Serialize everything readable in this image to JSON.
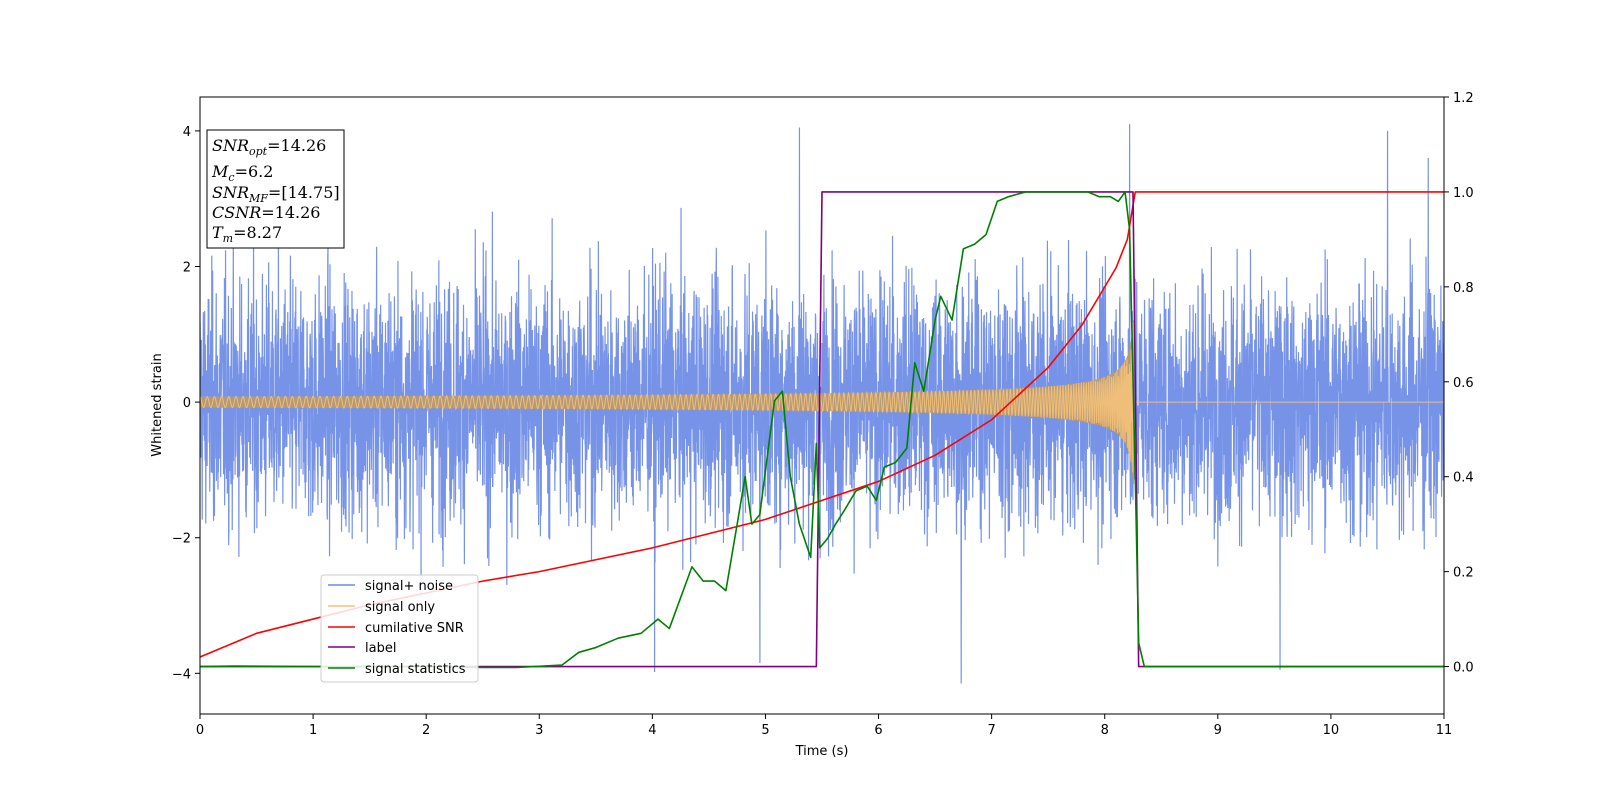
{
  "chart_data": {
    "type": "line",
    "xlabel": "Time (s)",
    "ylabel": "Whitened strain",
    "xlim": [
      0,
      11
    ],
    "ylim": [
      -4.6,
      4.5
    ],
    "y2lim": [
      -0.1,
      1.2
    ],
    "xticks": [
      "0",
      "1",
      "2",
      "3",
      "4",
      "5",
      "6",
      "7",
      "8",
      "9",
      "10",
      "11"
    ],
    "yticks": [
      "−4",
      "−2",
      "0",
      "2",
      "4"
    ],
    "y2ticks": [
      "0.0",
      "0.2",
      "0.4",
      "0.6",
      "0.8",
      "1.0",
      "1.2"
    ],
    "grid": false,
    "legend_position": "lower-left",
    "colors": {
      "signal_noise": "#6a8ae6",
      "signal_only": "#f5c27a",
      "cumulative_snr": "#ff0000",
      "label": "#800080",
      "statistics": "#008000"
    },
    "series": [
      {
        "name": "signal+ noise",
        "axis": "left",
        "description_values": {
          "noise_std": 0.9,
          "spread_min": -4.0,
          "spread_max": 4.1
        },
        "spikes": [
          {
            "x": 4.02,
            "y": -3.98
          },
          {
            "x": 4.95,
            "y": -3.85
          },
          {
            "x": 5.3,
            "y": 4.05
          },
          {
            "x": 6.73,
            "y": -4.15
          },
          {
            "x": 8.22,
            "y": 4.1
          },
          {
            "x": 9.55,
            "y": -3.95
          },
          {
            "x": 10.5,
            "y": 4.0
          },
          {
            "x": 10.86,
            "y": 3.6
          }
        ]
      },
      {
        "name": "signal only",
        "axis": "left",
        "envelope": {
          "amplitude_start": 0.08,
          "amplitude_merger": 1.4,
          "merger_time": 8.27,
          "frequency_start": 25
        }
      },
      {
        "name": "cumilative SNR",
        "axis": "right",
        "x": [
          0,
          0.5,
          1,
          1.5,
          2,
          2.5,
          3,
          3.5,
          4,
          4.5,
          5,
          5.5,
          6,
          6.5,
          7,
          7.5,
          7.8,
          8,
          8.1,
          8.2,
          8.27,
          11
        ],
        "y": [
          0.02,
          0.07,
          0.1,
          0.13,
          0.155,
          0.18,
          0.2,
          0.225,
          0.25,
          0.28,
          0.31,
          0.35,
          0.39,
          0.445,
          0.52,
          0.63,
          0.72,
          0.8,
          0.84,
          0.9,
          1.0,
          1.0
        ]
      },
      {
        "name": "label",
        "axis": "right",
        "x": [
          0,
          5.45,
          5.5,
          8.25,
          8.3,
          11
        ],
        "y": [
          0,
          0,
          1,
          1,
          0,
          0
        ]
      },
      {
        "name": "signal statistics",
        "axis": "right",
        "x": [
          0,
          0.3,
          1,
          2,
          2.5,
          2.8,
          3.2,
          3.35,
          3.5,
          3.7,
          3.9,
          4.05,
          4.15,
          4.35,
          4.45,
          4.55,
          4.65,
          4.75,
          4.82,
          4.88,
          4.95,
          5.02,
          5.08,
          5.15,
          5.22,
          5.3,
          5.4,
          5.45,
          5.48,
          5.55,
          5.62,
          5.7,
          5.8,
          5.9,
          5.98,
          6.05,
          6.15,
          6.25,
          6.32,
          6.4,
          6.5,
          6.55,
          6.65,
          6.75,
          6.85,
          6.95,
          7.05,
          7.15,
          7.3,
          7.5,
          7.7,
          7.85,
          7.95,
          8.05,
          8.12,
          8.18,
          8.22,
          8.27,
          8.3,
          8.35,
          8.45,
          9,
          10,
          11
        ],
        "y": [
          0,
          0.001,
          0,
          0,
          -0.002,
          -0.002,
          0.003,
          0.03,
          0.04,
          0.06,
          0.07,
          0.1,
          0.08,
          0.21,
          0.18,
          0.18,
          0.16,
          0.3,
          0.4,
          0.3,
          0.32,
          0.45,
          0.56,
          0.58,
          0.4,
          0.3,
          0.23,
          0.47,
          0.25,
          0.27,
          0.3,
          0.33,
          0.37,
          0.38,
          0.35,
          0.42,
          0.43,
          0.46,
          0.64,
          0.58,
          0.73,
          0.78,
          0.73,
          0.88,
          0.89,
          0.91,
          0.98,
          0.99,
          1.0,
          1.0,
          1.0,
          1.0,
          0.99,
          0.99,
          0.98,
          1.0,
          0.92,
          0.4,
          0.05,
          0.0,
          0.0,
          0.0,
          0.0,
          0.0
        ]
      }
    ],
    "legend": [
      "signal+ noise",
      "signal only",
      "cumilative SNR",
      "label",
      "signal statistics"
    ],
    "annotation": {
      "snr_opt_label": "SNR",
      "snr_opt_sub": "opt",
      "snr_opt_value": "=14.26",
      "mc_label": "M",
      "mc_sub": "c",
      "mc_value": "=6.2",
      "snr_mf_label": "SNR",
      "snr_mf_sub": "MF",
      "snr_mf_value": "=[14.75]",
      "csnr_label": "CSNR",
      "csnr_value": "=14.26",
      "tm_label": "T",
      "tm_sub": "m",
      "tm_value": "=8.27"
    }
  }
}
